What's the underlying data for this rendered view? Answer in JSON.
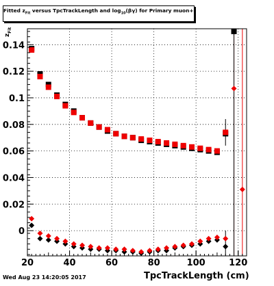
{
  "chart_data": {
    "type": "scatter",
    "title": "Fitted z_Fit versus TpcTrackLength and log10(βγ) for Primary muon+",
    "title_parts": {
      "pre": "Fitted  z",
      "sub1": "Fit",
      "mid": "  versus TpcTrackLength and log",
      "sub2": "10",
      "post": "(βγ) for Primary muon+"
    },
    "xlabel": "TpcTrackLength (cm)",
    "ylabel": "z_Fit",
    "ylabel_parts": {
      "main": "z",
      "sub": "Fit"
    },
    "footer": "Wed Aug 23 14:20:05 2017",
    "xlim": [
      20,
      124
    ],
    "ylim": [
      -0.019,
      0.152
    ],
    "grid": true,
    "x_ticks": [
      20,
      40,
      60,
      80,
      100,
      120
    ],
    "y_ticks": [
      0,
      0.02,
      0.04,
      0.06,
      0.08,
      0.1,
      0.12,
      0.14
    ],
    "y_tick_labels": [
      "0",
      "0.02",
      "0.04",
      "0.06",
      "0.08",
      "0.1",
      "0.12",
      "0.14"
    ],
    "colors": {
      "red": "#ee0000",
      "black": "#000000"
    },
    "series": [
      {
        "marker": "square",
        "color": "#000000",
        "x": [
          22,
          26,
          30,
          34,
          38,
          42,
          46,
          50,
          54,
          58,
          62,
          66,
          70,
          74,
          78,
          82,
          86,
          90,
          94,
          98,
          102,
          106,
          110,
          114,
          118
        ],
        "y": [
          0.137,
          0.118,
          0.11,
          0.102,
          0.095,
          0.09,
          0.085,
          0.081,
          0.078,
          0.075,
          0.073,
          0.071,
          0.07,
          0.068,
          0.067,
          0.066,
          0.065,
          0.064,
          0.063,
          0.062,
          0.061,
          0.06,
          0.059,
          0.073,
          0.15
        ]
      },
      {
        "marker": "square",
        "color": "#ee0000",
        "x": [
          22,
          26,
          30,
          34,
          38,
          42,
          46,
          50,
          54,
          58,
          62,
          66,
          70,
          74,
          78,
          82,
          86,
          90,
          94,
          98,
          102,
          106,
          110,
          114
        ],
        "y": [
          0.136,
          0.116,
          0.108,
          0.101,
          0.094,
          0.089,
          0.085,
          0.081,
          0.078,
          0.076,
          0.073,
          0.071,
          0.07,
          0.069,
          0.068,
          0.067,
          0.066,
          0.065,
          0.064,
          0.063,
          0.062,
          0.061,
          0.06,
          0.074
        ]
      },
      {
        "marker": "diamond",
        "color": "#000000",
        "x": [
          22,
          26,
          30,
          34,
          38,
          42,
          46,
          50,
          54,
          58,
          62,
          66,
          70,
          74,
          78,
          82,
          86,
          90,
          94,
          98,
          102,
          106,
          110,
          114
        ],
        "y": [
          0.004,
          -0.006,
          -0.007,
          -0.008,
          -0.01,
          -0.012,
          -0.013,
          -0.014,
          -0.014,
          -0.015,
          -0.015,
          -0.016,
          -0.016,
          -0.017,
          -0.016,
          -0.015,
          -0.015,
          -0.013,
          -0.012,
          -0.011,
          -0.01,
          -0.008,
          -0.007,
          -0.012
        ]
      },
      {
        "marker": "diamond",
        "color": "#ee0000",
        "x": [
          22,
          26,
          30,
          34,
          38,
          42,
          46,
          50,
          54,
          58,
          62,
          66,
          70,
          74,
          78,
          82,
          86,
          90,
          94,
          98,
          102,
          106,
          110,
          114,
          118,
          122
        ],
        "y": [
          0.009,
          -0.002,
          -0.004,
          -0.006,
          -0.008,
          -0.01,
          -0.011,
          -0.012,
          -0.013,
          -0.013,
          -0.014,
          -0.014,
          -0.015,
          -0.016,
          -0.015,
          -0.014,
          -0.013,
          -0.012,
          -0.011,
          -0.01,
          -0.008,
          -0.006,
          -0.005,
          -0.006,
          0.107,
          0.031
        ]
      }
    ],
    "error_bars": [
      {
        "x": 114,
        "lo": 0.064,
        "hi": 0.084,
        "color": "#000000"
      },
      {
        "x": 114,
        "lo": -0.019,
        "hi": 0.0,
        "color": "#000000"
      },
      {
        "x": 118,
        "lo": -0.019,
        "hi": 0.152,
        "color": "#ee0000"
      },
      {
        "x": 118,
        "lo": -0.019,
        "hi": 0.152,
        "color": "#000000"
      },
      {
        "x": 122,
        "lo": -0.019,
        "hi": 0.152,
        "color": "#ee0000"
      }
    ]
  }
}
